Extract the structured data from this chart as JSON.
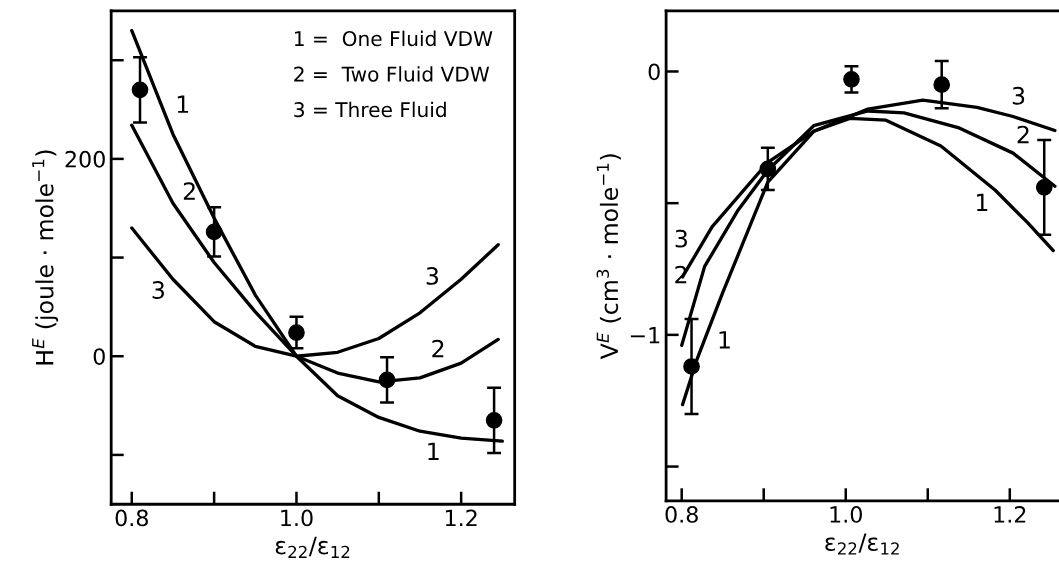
{
  "chart_data": [
    {
      "type": "line",
      "xlabel": "ε$_{22}$/ε$_{12}$",
      "ylabel": "H$^{E}$ (joule · mole$^{−1}$)",
      "xlim": [
        0.775,
        1.265
      ],
      "ylim": [
        -150,
        350
      ],
      "xticks": [
        {
          "value": 0.8,
          "label": "0.8"
        },
        {
          "value": 0.9,
          "label": null
        },
        {
          "value": 1.0,
          "label": "1.0"
        },
        {
          "value": 1.1,
          "label": null
        },
        {
          "value": 1.2,
          "label": "1.2"
        }
      ],
      "yticks": [
        {
          "value": -100,
          "label": null
        },
        {
          "value": 0,
          "label": "0"
        },
        {
          "value": 100,
          "label": null
        },
        {
          "value": 200,
          "label": "200"
        },
        {
          "value": 300,
          "label": null
        }
      ],
      "grid": false,
      "legend": false,
      "series": [
        {
          "type": "scatter",
          "color": "#000000",
          "marker": "circle",
          "x": [
            0.81,
            0.9,
            1.0,
            1.11,
            1.24
          ],
          "values": [
            270,
            126,
            24,
            -24,
            -65
          ],
          "errors": [
            33,
            25,
            16,
            23,
            33
          ]
        },
        {
          "color": "#000000",
          "x": [
            0.8,
            0.85,
            0.9,
            0.95,
            1.0,
            1.05,
            1.1,
            1.15,
            1.2,
            1.25
          ],
          "values": [
            330,
            225,
            140,
            62,
            0,
            -40,
            -62,
            -76,
            -83,
            -86
          ]
        },
        {
          "type": "line",
          "color": "#000000",
          "x": [
            0.8,
            0.85,
            0.9,
            0.95,
            1.0,
            1.05,
            1.1,
            1.15,
            1.2,
            1.245
          ],
          "values": [
            234,
            155,
            95,
            45,
            0,
            -17,
            -26,
            -22,
            -7,
            17
          ]
        },
        {
          "type": "line",
          "color": "#000000",
          "x": [
            0.8,
            0.85,
            0.9,
            0.95,
            1.0,
            1.05,
            1.1,
            1.15,
            1.2,
            1.245
          ],
          "values": [
            130,
            78,
            35,
            10,
            0,
            4,
            18,
            44,
            78,
            113
          ]
        }
      ],
      "annotations": [
        "1 =  One Fluid VDW",
        "2 =  Two Fluid VDW",
        "3 = Three Fluid",
        {
          "text": "1",
          "x": 0.84,
          "y": 246
        },
        {
          "text": "2",
          "x": 0.85,
          "y": 155
        },
        {
          "text": "3",
          "x": 0.85,
          "y": 78
        },
        {
          "text": "3",
          "x": 1.18,
          "y": 64
        },
        {
          "text": "2",
          "x": 1.18,
          "y": -13
        },
        {
          "text": "1",
          "x": 1.17,
          "y": -79
        }
      ]
    },
    {
      "type": "line",
      "xlabel": "ε$_{22}$/ε$_{12}$",
      "ylabel": "V$^{E}$ (cm$^{3}$ · mole$^{−1}$)",
      "xlim": [
        0.781,
        1.26
      ],
      "ylim": [
        -1.63,
        0.23
      ],
      "xticks": [
        {
          "value": 0.8,
          "label": "0.8"
        },
        {
          "value": 0.9,
          "label": null
        },
        {
          "value": 1.0,
          "label": "1.0"
        },
        {
          "value": 1.1,
          "label": null
        },
        {
          "value": 1.2,
          "label": "1.2"
        }
      ],
      "yticks": [
        {
          "value": -1.5,
          "label": null
        },
        {
          "value": -1,
          "label": "−1"
        },
        {
          "value": -0.5,
          "label": null
        },
        {
          "value": 0,
          "label": "0"
        }
      ],
      "grid": false,
      "legend": false,
      "series": [
        {
          "type": "scatter",
          "color": "#000000",
          "marker": "circle",
          "x": [
            0.812,
            0.905,
            1.007,
            1.117,
            1.242
          ],
          "values": [
            -1.12,
            -0.37,
            -0.03,
            -0.05,
            -0.44
          ],
          "errors": [
            0.18,
            0.08,
            0.05,
            0.09,
            0.18
          ]
        },
        {
          "type": "line",
          "color": "#000000",
          "x": [
            0.801,
            0.819,
            0.85,
            0.905,
            0.961,
            1.005,
            1.049,
            1.116,
            1.182,
            1.222,
            1.253
          ],
          "values": [
            -1.265,
            -1.09,
            -0.84,
            -0.42,
            -0.227,
            -0.178,
            -0.185,
            -0.283,
            -0.45,
            -0.575,
            -0.68
          ]
        },
        {
          "type": "line",
          "color": "#000000",
          "x": [
            0.8,
            0.828,
            0.868,
            0.905,
            0.961,
            1.027,
            1.071,
            1.137,
            1.204,
            1.255
          ],
          "values": [
            -1.04,
            -0.74,
            -0.53,
            -0.375,
            -0.206,
            -0.15,
            -0.157,
            -0.213,
            -0.31,
            -0.436
          ]
        },
        {
          "type": "line",
          "color": "#000000",
          "x": [
            0.801,
            0.837,
            0.905,
            0.961,
            1.027,
            1.094,
            1.16,
            1.204,
            1.255
          ],
          "values": [
            -0.78,
            -0.59,
            -0.345,
            -0.227,
            -0.143,
            -0.109,
            -0.136,
            -0.171,
            -0.224
          ]
        }
      ],
      "annotations": [
        {
          "text": "3",
          "x": 0.82,
          "y": -0.68
        },
        {
          "text": "2",
          "x": 0.822,
          "y": -0.8
        },
        {
          "text": "1",
          "x": 0.83,
          "y": -1.0
        },
        {
          "text": "3",
          "x": 1.204,
          "y": -0.171
        },
        {
          "text": "2",
          "x": 1.204,
          "y": -0.31
        },
        {
          "text": "1",
          "x": 1.182,
          "y": -0.45
        }
      ]
    }
  ]
}
